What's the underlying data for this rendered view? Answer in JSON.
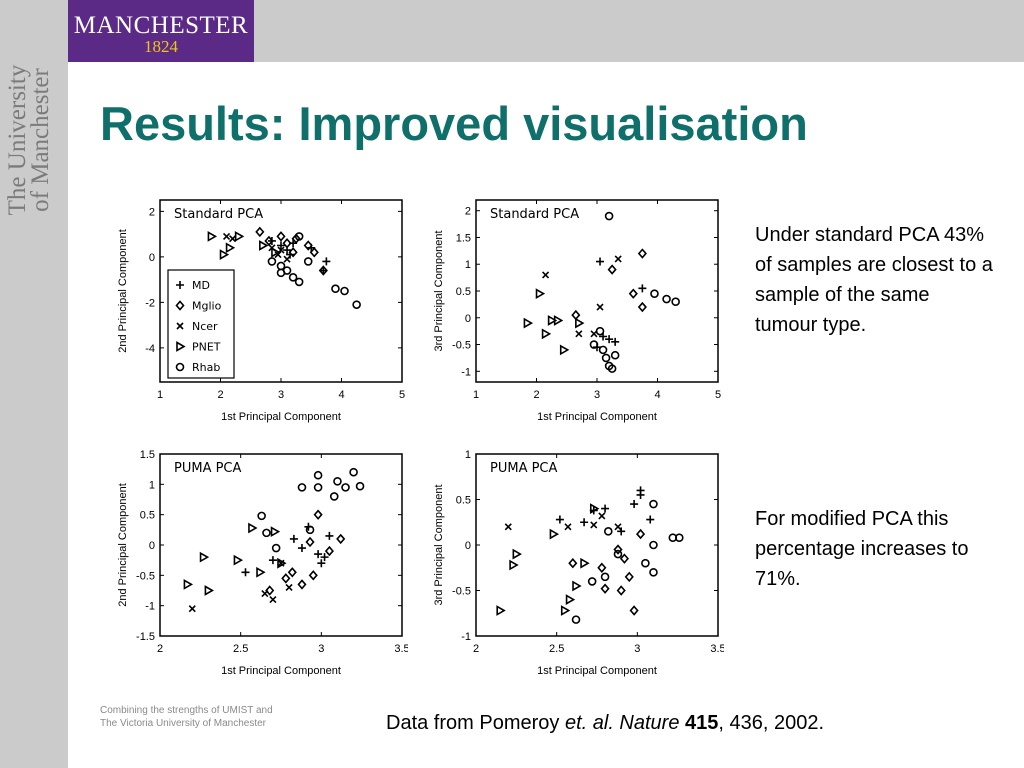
{
  "header": {
    "logo_name": "MANCHESTER",
    "logo_year": "1824",
    "vertical_line1": "The University",
    "vertical_line2": "of Manchester",
    "brand_color": "#5b2a86",
    "accent_color": "#f0c419"
  },
  "slide": {
    "title": "Results: Improved visualisation",
    "title_color": "#0e6f6b",
    "note1": "Under standard PCA 43% of samples are closest to a sample of the same tumour type.",
    "note2": "For modified PCA this percentage increases to 71%.",
    "footer_line1": "Combining the strengths of UMIST and",
    "footer_line2": "The Victoria University of Manchester",
    "citation": {
      "prefix": "Data from Pomeroy ",
      "italic": "et. al. Nature",
      "bold": "415",
      "suffix": ", 436, 2002."
    }
  },
  "chart_data": [
    {
      "type": "scatter",
      "title": "Standard PCA",
      "xlabel": "1st Principal Component",
      "ylabel": "2nd Principal Component",
      "xlim": [
        1,
        5
      ],
      "ylim": [
        -5.5,
        2.5
      ],
      "xticks": [
        1,
        2,
        3,
        4,
        5
      ],
      "yticks": [
        2,
        0,
        -2,
        -4
      ],
      "legend": "bottom-left",
      "series": [
        {
          "name": "MD",
          "marker": "plus",
          "points": [
            [
              2.85,
              0.7
            ],
            [
              3.0,
              0.5
            ],
            [
              3.1,
              0.3
            ],
            [
              3.2,
              0.6
            ],
            [
              3.5,
              0.4
            ],
            [
              3.75,
              -0.2
            ],
            [
              3.7,
              -0.6
            ],
            [
              3.15,
              0.1
            ]
          ]
        },
        {
          "name": "Mglio",
          "marker": "diamond",
          "points": [
            [
              2.65,
              1.1
            ],
            [
              2.8,
              0.7
            ],
            [
              3.0,
              0.9
            ],
            [
              3.1,
              0.6
            ],
            [
              3.25,
              0.8
            ],
            [
              3.45,
              0.5
            ],
            [
              3.55,
              0.2
            ],
            [
              3.7,
              -0.6
            ],
            [
              3.2,
              0.2
            ]
          ]
        },
        {
          "name": "Ncer",
          "marker": "x",
          "points": [
            [
              2.1,
              0.9
            ],
            [
              2.2,
              0.8
            ],
            [
              2.95,
              0.1
            ],
            [
              3.0,
              0.3
            ],
            [
              3.1,
              -0.1
            ],
            [
              2.85,
              0.4
            ]
          ]
        },
        {
          "name": "PNET",
          "marker": "triangle",
          "points": [
            [
              1.85,
              0.9
            ],
            [
              2.15,
              0.4
            ],
            [
              2.3,
              0.9
            ],
            [
              2.05,
              0.1
            ],
            [
              2.7,
              0.5
            ],
            [
              2.9,
              0.2
            ]
          ]
        },
        {
          "name": "Rhab",
          "marker": "circle",
          "points": [
            [
              2.85,
              -0.2
            ],
            [
              3.0,
              -0.4
            ],
            [
              3.1,
              -0.6
            ],
            [
              3.2,
              -0.9
            ],
            [
              3.3,
              -1.1
            ],
            [
              3.3,
              0.9
            ],
            [
              3.45,
              -0.2
            ],
            [
              3.9,
              -1.4
            ],
            [
              4.05,
              -1.5
            ],
            [
              4.25,
              -2.1
            ],
            [
              3.0,
              -0.7
            ]
          ]
        }
      ]
    },
    {
      "type": "scatter",
      "title": "Standard PCA",
      "xlabel": "1st Principal Component",
      "ylabel": "3rd Principal Component",
      "xlim": [
        1,
        5
      ],
      "ylim": [
        -1.2,
        2.2
      ],
      "xticks": [
        1,
        2,
        3,
        4,
        5
      ],
      "yticks": [
        2,
        1.5,
        1,
        0.5,
        0,
        -0.5,
        -1
      ],
      "series": [
        {
          "name": "MD",
          "marker": "plus",
          "points": [
            [
              3.05,
              1.05
            ],
            [
              3.2,
              -0.4
            ],
            [
              3.3,
              -0.45
            ],
            [
              3.75,
              0.55
            ],
            [
              3.0,
              -0.55
            ],
            [
              3.1,
              -0.35
            ]
          ]
        },
        {
          "name": "Mglio",
          "marker": "diamond",
          "points": [
            [
              3.25,
              0.9
            ],
            [
              3.6,
              0.45
            ],
            [
              3.75,
              1.2
            ],
            [
              3.75,
              0.2
            ],
            [
              2.65,
              0.05
            ]
          ]
        },
        {
          "name": "Ncer",
          "marker": "x",
          "points": [
            [
              2.15,
              0.8
            ],
            [
              3.05,
              0.2
            ],
            [
              3.35,
              1.1
            ],
            [
              2.7,
              -0.3
            ],
            [
              2.95,
              -0.3
            ]
          ]
        },
        {
          "name": "PNET",
          "marker": "triangle",
          "points": [
            [
              1.85,
              -0.1
            ],
            [
              2.05,
              0.45
            ],
            [
              2.15,
              -0.3
            ],
            [
              2.45,
              -0.6
            ],
            [
              2.7,
              -0.1
            ],
            [
              2.25,
              -0.05
            ],
            [
              2.35,
              -0.05
            ]
          ]
        },
        {
          "name": "Rhab",
          "marker": "circle",
          "points": [
            [
              3.2,
              1.9
            ],
            [
              2.95,
              -0.5
            ],
            [
              3.1,
              -0.6
            ],
            [
              3.15,
              -0.75
            ],
            [
              3.2,
              -0.9
            ],
            [
              3.25,
              -0.95
            ],
            [
              3.3,
              -0.7
            ],
            [
              3.95,
              0.45
            ],
            [
              4.15,
              0.35
            ],
            [
              4.3,
              0.3
            ],
            [
              3.05,
              -0.25
            ]
          ]
        }
      ]
    },
    {
      "type": "scatter",
      "title": "PUMA PCA",
      "xlabel": "1st Principal Component",
      "ylabel": "2nd Principal Component",
      "xlim": [
        2,
        3.5
      ],
      "ylim": [
        -1.5,
        1.5
      ],
      "xticks": [
        2,
        2.5,
        3,
        3.5
      ],
      "yticks": [
        1.5,
        1,
        0.5,
        0,
        -0.5,
        -1,
        -1.5
      ],
      "series": [
        {
          "name": "MD",
          "marker": "plus",
          "points": [
            [
              2.53,
              -0.45
            ],
            [
              2.7,
              -0.25
            ],
            [
              2.83,
              0.1
            ],
            [
              2.88,
              -0.05
            ],
            [
              2.92,
              0.3
            ],
            [
              2.98,
              -0.15
            ],
            [
              3.02,
              -0.2
            ],
            [
              3.05,
              0.15
            ],
            [
              3.0,
              -0.3
            ]
          ]
        },
        {
          "name": "Mglio",
          "marker": "diamond",
          "points": [
            [
              2.68,
              -0.75
            ],
            [
              2.78,
              -0.55
            ],
            [
              2.82,
              -0.45
            ],
            [
              2.88,
              -0.65
            ],
            [
              2.95,
              -0.5
            ],
            [
              2.98,
              0.5
            ],
            [
              3.05,
              -0.1
            ],
            [
              3.12,
              0.1
            ],
            [
              2.93,
              0.05
            ]
          ]
        },
        {
          "name": "Ncer",
          "marker": "x",
          "points": [
            [
              2.2,
              -1.05
            ],
            [
              2.65,
              -0.8
            ],
            [
              2.7,
              -0.9
            ],
            [
              2.8,
              -0.7
            ],
            [
              2.75,
              -0.3
            ]
          ]
        },
        {
          "name": "PNET",
          "marker": "triangle",
          "points": [
            [
              2.17,
              -0.65
            ],
            [
              2.27,
              -0.2
            ],
            [
              2.3,
              -0.75
            ],
            [
              2.48,
              -0.25
            ],
            [
              2.57,
              0.28
            ],
            [
              2.62,
              -0.45
            ],
            [
              2.71,
              0.22
            ],
            [
              2.75,
              -0.3
            ]
          ]
        },
        {
          "name": "Rhab",
          "marker": "circle",
          "points": [
            [
              2.63,
              0.48
            ],
            [
              2.66,
              0.2
            ],
            [
              2.72,
              -0.05
            ],
            [
              2.88,
              0.95
            ],
            [
              2.93,
              0.25
            ],
            [
              2.98,
              0.95
            ],
            [
              2.98,
              1.15
            ],
            [
              3.08,
              0.8
            ],
            [
              3.1,
              1.05
            ],
            [
              3.15,
              0.95
            ],
            [
              3.2,
              1.2
            ],
            [
              3.24,
              0.97
            ]
          ]
        }
      ]
    },
    {
      "type": "scatter",
      "title": "PUMA PCA",
      "xlabel": "1st Principal Component",
      "ylabel": "3rd Principal Component",
      "xlim": [
        2,
        3.5
      ],
      "ylim": [
        -1,
        1
      ],
      "xticks": [
        2,
        2.5,
        3,
        3.5
      ],
      "yticks": [
        1,
        0.5,
        0,
        -0.5,
        -1
      ],
      "series": [
        {
          "name": "MD",
          "marker": "plus",
          "points": [
            [
              2.52,
              0.28
            ],
            [
              2.67,
              0.25
            ],
            [
              2.73,
              0.38
            ],
            [
              2.8,
              0.4
            ],
            [
              2.9,
              0.15
            ],
            [
              2.98,
              0.45
            ],
            [
              3.02,
              0.55
            ],
            [
              3.08,
              0.28
            ],
            [
              3.02,
              0.6
            ]
          ]
        },
        {
          "name": "Mglio",
          "marker": "diamond",
          "points": [
            [
              2.6,
              -0.2
            ],
            [
              2.78,
              -0.25
            ],
            [
              2.8,
              -0.48
            ],
            [
              2.88,
              -0.05
            ],
            [
              2.9,
              -0.5
            ],
            [
              2.95,
              -0.35
            ],
            [
              2.98,
              -0.72
            ],
            [
              3.02,
              0.12
            ],
            [
              2.92,
              -0.15
            ]
          ]
        },
        {
          "name": "Ncer",
          "marker": "x",
          "points": [
            [
              2.2,
              0.2
            ],
            [
              2.57,
              0.2
            ],
            [
              2.73,
              0.22
            ],
            [
              2.78,
              0.32
            ],
            [
              2.88,
              0.2
            ]
          ]
        },
        {
          "name": "PNET",
          "marker": "triangle",
          "points": [
            [
              2.15,
              -0.72
            ],
            [
              2.23,
              -0.22
            ],
            [
              2.25,
              -0.1
            ],
            [
              2.48,
              0.12
            ],
            [
              2.55,
              -0.72
            ],
            [
              2.58,
              -0.6
            ],
            [
              2.62,
              -0.45
            ],
            [
              2.67,
              -0.2
            ],
            [
              2.73,
              0.4
            ]
          ]
        },
        {
          "name": "Rhab",
          "marker": "circle",
          "points": [
            [
              2.62,
              -0.82
            ],
            [
              2.72,
              -0.4
            ],
            [
              2.8,
              -0.35
            ],
            [
              2.82,
              0.15
            ],
            [
              2.88,
              -0.1
            ],
            [
              3.05,
              -0.2
            ],
            [
              3.1,
              0.45
            ],
            [
              3.1,
              -0.3
            ],
            [
              3.22,
              0.08
            ],
            [
              3.26,
              0.08
            ],
            [
              3.1,
              0.0
            ]
          ]
        }
      ]
    }
  ]
}
